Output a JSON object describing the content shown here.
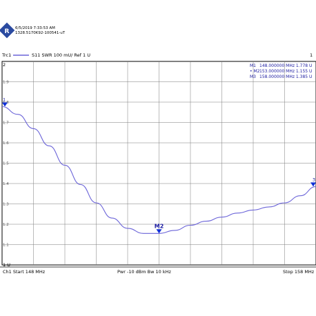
{
  "header": {
    "date": "6/5/2019 7:33:53 AM",
    "serial": "1328.5170K92-100541-uT",
    "trace_label": "Trc1",
    "trace_desc": "S11  SWR  100 mU/ Ref 1 U",
    "window_num": "1"
  },
  "footer": {
    "start": "Ch1  Start  148 MHz",
    "mid": "Pwr  -10 dBm  Bw  10 kHz",
    "stop": "Stop  158 MHz"
  },
  "colors": {
    "trace": "#6a63d8",
    "grid": "#7a7a7a",
    "marker_text": "#1a1aa0",
    "marker_fill": "#1030d8",
    "logo": "#2a4aa0"
  },
  "chart_data": {
    "type": "line",
    "xlabel": "",
    "ylabel": "",
    "xlim": [
      148,
      158
    ],
    "ylim": [
      1.0,
      2.0
    ],
    "y_ticks": [
      "2",
      "1.9",
      "1.8",
      "1.7",
      "1.6",
      "1.5",
      "1.4",
      "1.3",
      "1.2",
      "1.1",
      "1 U"
    ],
    "grid": true,
    "series": [
      {
        "x": [
          148.0,
          148.5,
          149.0,
          149.5,
          150.0,
          150.5,
          151.0,
          151.5,
          152.0,
          152.5,
          153.0,
          153.5,
          154.0,
          154.5,
          155.0,
          155.5,
          156.0,
          156.5,
          157.0,
          157.5,
          158.0
        ],
        "y": [
          1.778,
          1.74,
          1.67,
          1.585,
          1.49,
          1.395,
          1.305,
          1.23,
          1.18,
          1.155,
          1.155,
          1.17,
          1.195,
          1.215,
          1.235,
          1.255,
          1.27,
          1.285,
          1.305,
          1.34,
          1.385
        ]
      }
    ],
    "markers": [
      {
        "id": "1",
        "label": "M1",
        "x": 148,
        "y": 1.778,
        "text": "148.000000  MHz   1.778  U",
        "active": false
      },
      {
        "id": "2",
        "label": "M2",
        "x": 153,
        "y": 1.155,
        "text": "153.000000  MHz   1.155  U",
        "active": true
      },
      {
        "id": "3",
        "label": "M3",
        "x": 158,
        "y": 1.385,
        "text": "158.000000  MHz   1.385  U",
        "active": false
      }
    ]
  }
}
